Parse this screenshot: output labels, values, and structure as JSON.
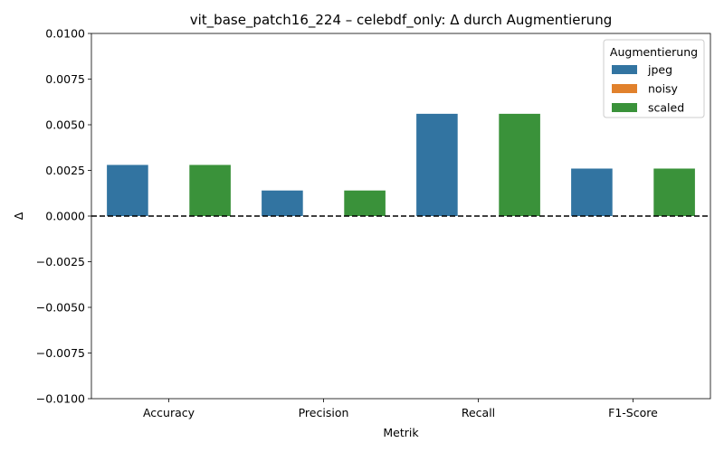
{
  "chart_data": {
    "type": "bar",
    "title": "vit_base_patch16_224 – celebdf_only: Δ durch Augmentierung",
    "xlabel": "Metrik",
    "ylabel": "Δ",
    "categories": [
      "Accuracy",
      "Precision",
      "Recall",
      "F1-Score"
    ],
    "series": [
      {
        "name": "jpeg",
        "color": "#3274a1",
        "values": [
          0.0028,
          0.0014,
          0.0056,
          0.0026
        ]
      },
      {
        "name": "noisy",
        "color": "#e1812c",
        "values": [
          0.0,
          0.0,
          0.0,
          0.0
        ]
      },
      {
        "name": "scaled",
        "color": "#3a923a",
        "values": [
          0.0028,
          0.0014,
          0.0056,
          0.0026
        ]
      }
    ],
    "ylim": [
      -0.01,
      0.01
    ],
    "yticks": [
      -0.01,
      -0.0075,
      -0.005,
      -0.0025,
      0.0,
      0.0025,
      0.005,
      0.0075,
      0.01
    ],
    "ytick_labels": [
      "−0.0100",
      "−0.0075",
      "−0.0050",
      "−0.0025",
      "0.0000",
      "0.0025",
      "0.0050",
      "0.0075",
      "0.0100"
    ],
    "reference_line": {
      "y": 0.0,
      "style": "dashed",
      "color": "#000000"
    },
    "legend": {
      "title": "Augmentierung",
      "position": "top-right"
    },
    "grid": false
  }
}
